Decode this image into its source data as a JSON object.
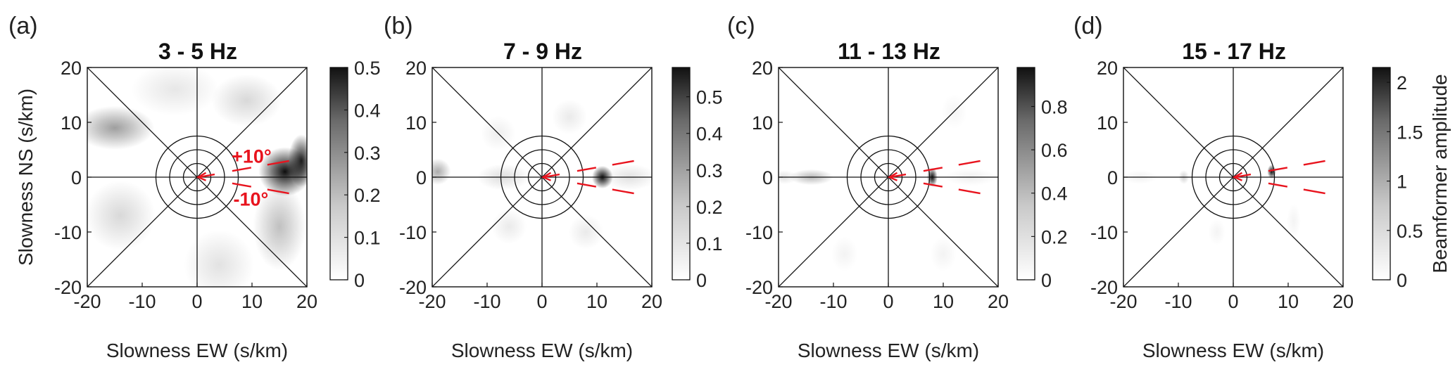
{
  "chart_data": [
    {
      "type": "heatmap",
      "panel_label": "(a)",
      "title": "3 - 5 Hz",
      "xlabel": "Slowness EW (s/km)",
      "ylabel": "Slowness NS (s/km)",
      "xlim": [
        -20,
        20
      ],
      "ylim": [
        -20,
        20
      ],
      "xticks": [
        "-20",
        "-10",
        "0",
        "10",
        "20"
      ],
      "yticks": [
        "20",
        "10",
        "0",
        "-10",
        "-20"
      ],
      "colorbar": {
        "min": 0,
        "max": 0.5,
        "ticks": [
          "0.5",
          "0.4",
          "0.3",
          "0.2",
          "0.1",
          "0"
        ],
        "label": ""
      },
      "annotations": [
        "+10°",
        "-10°"
      ],
      "peaks": [
        {
          "x": 16,
          "y": 1,
          "amplitude": 0.5,
          "sx": 3.0,
          "sy": 2.8
        },
        {
          "x": 19,
          "y": 3,
          "amplitude": 0.45,
          "sx": 1.5,
          "sy": 3.0
        },
        {
          "x": -15,
          "y": 9,
          "amplitude": 0.2,
          "sx": 4.5,
          "sy": 2.5
        },
        {
          "x": 15,
          "y": -9,
          "amplitude": 0.13,
          "sx": 3,
          "sy": 5
        },
        {
          "x": -14,
          "y": -7,
          "amplitude": 0.08,
          "sx": 4,
          "sy": 4
        },
        {
          "x": 9,
          "y": 14,
          "amplitude": 0.08,
          "sx": 4,
          "sy": 3
        },
        {
          "x": 4,
          "y": -16,
          "amplitude": 0.06,
          "sx": 4,
          "sy": 4
        },
        {
          "x": -4,
          "y": 16,
          "amplitude": 0.05,
          "sx": 5,
          "sy": 3
        }
      ]
    },
    {
      "type": "heatmap",
      "panel_label": "(b)",
      "title": "7 - 9 Hz",
      "xlabel": "Slowness EW (s/km)",
      "ylabel": "",
      "xlim": [
        -20,
        20
      ],
      "ylim": [
        -20,
        20
      ],
      "xticks": [
        "-20",
        "-10",
        "0",
        "10",
        "20"
      ],
      "yticks": [
        "20",
        "10",
        "0",
        "-10",
        "-20"
      ],
      "colorbar": {
        "min": 0,
        "max": 0.58,
        "ticks": [
          "0.5",
          "0.4",
          "0.3",
          "0.2",
          "0.1",
          "0"
        ],
        "tick_values": [
          0.5,
          0.4,
          0.3,
          0.2,
          0.1,
          0
        ],
        "label": ""
      },
      "annotations": [],
      "peaks": [
        {
          "x": 11,
          "y": 0,
          "amplitude": 0.58,
          "sx": 1.2,
          "sy": 1.3
        },
        {
          "x": -19,
          "y": 1,
          "amplitude": 0.2,
          "sx": 1.5,
          "sy": 1.5
        },
        {
          "x": -7,
          "y": 0,
          "amplitude": 0.08,
          "sx": 3,
          "sy": 1.5
        },
        {
          "x": 16,
          "y": 0,
          "amplitude": 0.07,
          "sx": 3,
          "sy": 1.5
        },
        {
          "x": 5,
          "y": 11,
          "amplitude": 0.05,
          "sx": 2,
          "sy": 2
        },
        {
          "x": -6,
          "y": -9,
          "amplitude": 0.05,
          "sx": 2,
          "sy": 2
        },
        {
          "x": 8,
          "y": -10,
          "amplitude": 0.05,
          "sx": 2,
          "sy": 2
        },
        {
          "x": -8,
          "y": 8,
          "amplitude": 0.04,
          "sx": 2,
          "sy": 2
        }
      ]
    },
    {
      "type": "heatmap",
      "panel_label": "(c)",
      "title": "11 - 13 Hz",
      "xlabel": "Slowness EW (s/km)",
      "ylabel": "",
      "xlim": [
        -20,
        20
      ],
      "ylim": [
        -20,
        20
      ],
      "xticks": [
        "-20",
        "-10",
        "0",
        "10",
        "20"
      ],
      "yticks": [
        "20",
        "10",
        "0",
        "-10",
        "-20"
      ],
      "colorbar": {
        "min": 0,
        "max": 0.98,
        "ticks": [
          "0.8",
          "0.6",
          "0.4",
          "0.2",
          "0"
        ],
        "tick_values": [
          0.8,
          0.6,
          0.4,
          0.2,
          0
        ],
        "label": ""
      },
      "annotations": [],
      "peaks": [
        {
          "x": 8,
          "y": 0,
          "amplitude": 0.98,
          "sx": 0.6,
          "sy": 1.1
        },
        {
          "x": -14,
          "y": 0,
          "amplitude": 0.28,
          "sx": 2.5,
          "sy": 0.9
        },
        {
          "x": -19,
          "y": 0,
          "amplitude": 0.12,
          "sx": 1.5,
          "sy": 0.8
        },
        {
          "x": 15,
          "y": 0,
          "amplitude": 0.06,
          "sx": 3,
          "sy": 1
        },
        {
          "x": -8,
          "y": -14,
          "amplitude": 0.05,
          "sx": 1.5,
          "sy": 2
        },
        {
          "x": 10,
          "y": -14,
          "amplitude": 0.05,
          "sx": 1.5,
          "sy": 2
        },
        {
          "x": 12,
          "y": 12,
          "amplitude": 0.04,
          "sx": 1.5,
          "sy": 2
        }
      ]
    },
    {
      "type": "heatmap",
      "panel_label": "(d)",
      "title": "15 - 17 Hz",
      "xlabel": "Slowness EW (s/km)",
      "ylabel": "",
      "xlim": [
        -20,
        20
      ],
      "ylim": [
        -20,
        20
      ],
      "xticks": [
        "-20",
        "-10",
        "0",
        "10",
        "20"
      ],
      "yticks": [
        "20",
        "10",
        "0",
        "-10",
        "-20"
      ],
      "colorbar": {
        "min": 0,
        "max": 2.15,
        "ticks": [
          "2",
          "1.5",
          "1",
          "0.5",
          "0"
        ],
        "tick_values": [
          2,
          1.5,
          1,
          0.5,
          0
        ],
        "label": "Beamformer amplitude"
      },
      "annotations": [],
      "peaks": [
        {
          "x": 7,
          "y": 1,
          "amplitude": 2.15,
          "sx": 0.5,
          "sy": 0.8
        },
        {
          "x": -9,
          "y": 0,
          "amplitude": 0.4,
          "sx": 0.6,
          "sy": 0.8
        },
        {
          "x": -17,
          "y": 0,
          "amplitude": 0.12,
          "sx": 2,
          "sy": 0.8
        },
        {
          "x": 11,
          "y": -8,
          "amplitude": 0.1,
          "sx": 0.8,
          "sy": 2
        },
        {
          "x": -3,
          "y": -10,
          "amplitude": 0.1,
          "sx": 1,
          "sy": 1.5
        }
      ]
    }
  ],
  "colors": {
    "ring_lines": "#111111",
    "marker": "#e8141e",
    "background": "#ffffff"
  }
}
